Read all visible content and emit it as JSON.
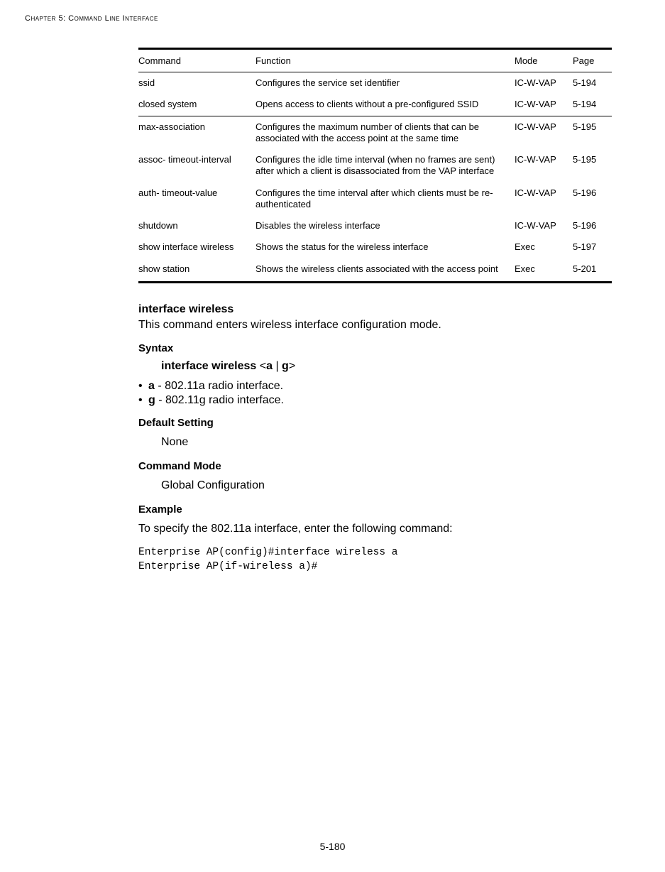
{
  "header": {
    "chapter_label": "Chapter 5: Command Line Interface"
  },
  "table": {
    "columns": {
      "command": "Command",
      "function": "Function",
      "mode": "Mode",
      "page": "Page"
    },
    "rows": [
      {
        "command": "ssid",
        "function": "Configures the service set identifier",
        "mode": "IC-W-VAP",
        "page": "5-194",
        "sep": false
      },
      {
        "command": "closed system",
        "function": "Opens access to clients without a pre-configured SSID",
        "mode": "IC-W-VAP",
        "page": "5-194",
        "sep": false
      },
      {
        "command": "max-association",
        "function": "Configures the maximum number of clients that can be associated with the access point at the same time",
        "mode": "IC-W-VAP",
        "page": "5-195",
        "sep": true
      },
      {
        "command": "assoc- timeout-interval",
        "function": "Configures the idle time interval (when no frames are sent) after which a client is disassociated from the VAP interface",
        "mode": "IC-W-VAP",
        "page": "5-195",
        "sep": false
      },
      {
        "command": "auth- timeout-value",
        "function": "Configures the time interval after which clients must be re-authenticated",
        "mode": "IC-W-VAP",
        "page": "5-196",
        "sep": false
      },
      {
        "command": "shutdown",
        "function": "Disables the wireless interface",
        "mode": "IC-W-VAP",
        "page": "5-196",
        "sep": false
      },
      {
        "command": "show interface wireless",
        "function": "Shows the status for the wireless interface",
        "mode": "Exec",
        "page": "5-197",
        "sep": false
      },
      {
        "command": "show station",
        "function": "Shows the wireless clients associated with the access point",
        "mode": "Exec",
        "page": "5-201",
        "sep": false
      }
    ]
  },
  "doc": {
    "title": "interface wireless",
    "intro": "This command enters wireless interface configuration mode.",
    "syntax_head": "Syntax",
    "syntax_cmd_bold1": "interface wireless",
    "syntax_cmd_lt": "<",
    "syntax_cmd_a": "a",
    "syntax_cmd_pipe": " | ",
    "syntax_cmd_g": "g",
    "syntax_cmd_gt": ">",
    "bullet_a_key": "a",
    "bullet_a_desc": " - 802.11a radio interface.",
    "bullet_g_key": "g",
    "bullet_g_desc": " - 802.11g radio interface.",
    "default_head": "Default Setting",
    "default_val": "None",
    "mode_head": "Command Mode",
    "mode_val": "Global Configuration",
    "example_head": "Example",
    "example_intro": "To specify the 802.11a interface, enter the following command:",
    "example_code": "Enterprise AP(config)#interface wireless a\nEnterprise AP(if-wireless a)#"
  },
  "footer": {
    "page_number": "5-180"
  }
}
